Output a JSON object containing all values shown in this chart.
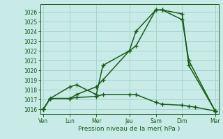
{
  "title": "",
  "xlabel": "Pression niveau de la mer( hPa )",
  "ylabel": "",
  "bg_color": "#c8ebe8",
  "grid_color": "#a8d4d0",
  "line_color": "#1a5c1a",
  "ylim": [
    1015.5,
    1026.8
  ],
  "yticks": [
    1016,
    1017,
    1018,
    1019,
    1020,
    1021,
    1022,
    1023,
    1024,
    1025,
    1026
  ],
  "x_positions": [
    0,
    1,
    2,
    3,
    4,
    5,
    6,
    7,
    8,
    9,
    10,
    11,
    12,
    13,
    14,
    15,
    16,
    17,
    18,
    19,
    20,
    21,
    22,
    23,
    24,
    25,
    26
  ],
  "x_tick_positions": [
    0,
    4,
    8,
    13,
    17,
    21,
    26
  ],
  "x_tick_labels": [
    "Ven",
    "Lun",
    "Mer",
    "Jeu",
    "Sam",
    "Dim",
    "Mar"
  ],
  "xlim": [
    -0.5,
    26.5
  ],
  "line1_x": [
    0,
    1,
    4,
    5,
    8,
    9,
    13,
    14,
    17,
    18,
    21,
    22,
    26
  ],
  "line1_y": [
    1016.0,
    1017.1,
    1017.1,
    1017.5,
    1018.3,
    1019.0,
    1022.0,
    1022.5,
    1026.2,
    1026.2,
    1025.8,
    1020.5,
    1015.8
  ],
  "line2_x": [
    0,
    1,
    4,
    5,
    8,
    9,
    13,
    14,
    17,
    18,
    21,
    22,
    26
  ],
  "line2_y": [
    1016.0,
    1017.1,
    1018.3,
    1018.5,
    1017.5,
    1020.5,
    1022.0,
    1024.0,
    1026.2,
    1026.2,
    1025.2,
    1021.0,
    1015.8
  ],
  "line3_x": [
    0,
    1,
    4,
    5,
    8,
    9,
    13,
    14,
    17,
    18,
    21,
    22,
    23,
    26
  ],
  "line3_y": [
    1016.0,
    1017.1,
    1017.1,
    1017.2,
    1017.3,
    1017.5,
    1017.5,
    1017.5,
    1016.7,
    1016.5,
    1016.4,
    1016.3,
    1016.2,
    1015.8
  ]
}
